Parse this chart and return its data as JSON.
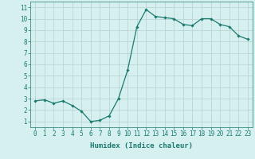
{
  "x": [
    0,
    1,
    2,
    3,
    4,
    5,
    6,
    7,
    8,
    9,
    10,
    11,
    12,
    13,
    14,
    15,
    16,
    17,
    18,
    19,
    20,
    21,
    22,
    23
  ],
  "y": [
    2.8,
    2.9,
    2.6,
    2.8,
    2.4,
    1.9,
    1.0,
    1.1,
    1.5,
    3.0,
    5.5,
    9.3,
    10.8,
    10.2,
    10.1,
    10.0,
    9.5,
    9.4,
    10.0,
    10.0,
    9.5,
    9.3,
    8.5,
    8.2
  ],
  "line_color": "#1a7a6e",
  "marker": "D",
  "marker_size": 1.8,
  "line_width": 0.9,
  "bg_color": "#d6f0f0",
  "grid_color": "#b5cece",
  "xlabel": "Humidex (Indice chaleur)",
  "xlabel_fontsize": 6.5,
  "tick_fontsize": 5.5,
  "xlim": [
    -0.5,
    23.5
  ],
  "ylim": [
    0.5,
    11.5
  ],
  "yticks": [
    1,
    2,
    3,
    4,
    5,
    6,
    7,
    8,
    9,
    10,
    11
  ],
  "xticks": [
    0,
    1,
    2,
    3,
    4,
    5,
    6,
    7,
    8,
    9,
    10,
    11,
    12,
    13,
    14,
    15,
    16,
    17,
    18,
    19,
    20,
    21,
    22,
    23
  ]
}
